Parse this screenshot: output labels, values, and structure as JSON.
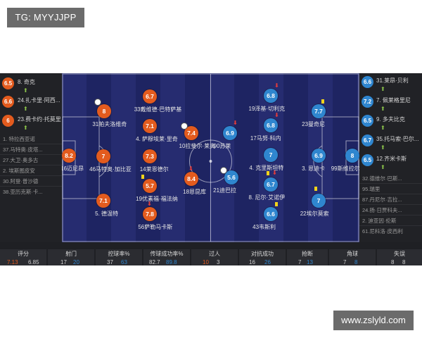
{
  "watermark_top": "TG: MYYJJPP",
  "watermark_bottom": "www.zslyld.com",
  "home_subs": [
    {
      "num_name": "8. 奇克",
      "rating": "6.5"
    },
    {
      "num_name": "24.扎卡里·阿西...",
      "rating": "6.6"
    },
    {
      "num_name": "23.费卡约·托莫里",
      "rating": "6"
    }
  ],
  "home_bench": [
    "1. 特拉西亚诺",
    "37.马特奥·皮塔...",
    "27.大卫·奥多古",
    "2. 埃斯图皮安",
    "30.阿登·普沙德",
    "38.亚历克斯·卡..."
  ],
  "away_subs": [
    {
      "num_name": "31.莱昂·贝利",
      "rating": "6.6"
    },
    {
      "num_name": "7. 佩莱格里尼",
      "rating": "7.2"
    },
    {
      "num_name": "9. 多夫比克",
      "rating": "6.5"
    },
    {
      "num_name": "35.托马索·巴尔...",
      "rating": "6.7"
    },
    {
      "num_name": "12.齐米卡斯",
      "rating": "6.5"
    }
  ],
  "away_bench": [
    "32.德维尔·巴斯...",
    "95.瑞里",
    "87.丹尼尔·吉拉...",
    "24.扬·日贾科夫...",
    "2. 迪亚因·伦斯",
    "61.尼科洛·皮西利"
  ],
  "home_players": [
    {
      "rating": "8.2",
      "name": "16迈尼昂"
    },
    {
      "rating": "8",
      "name": "31帕夫洛维奇"
    },
    {
      "rating": "7",
      "name": "46马特奥·加比亚"
    },
    {
      "rating": "7.1",
      "name": "5. 德温特"
    },
    {
      "rating": "6.7",
      "name": "33戴维德·巴特萨基"
    },
    {
      "rating": "7.1",
      "name": "4. 萨穆埃莱·里奇"
    },
    {
      "rating": "7.3",
      "name": "14莱恩德尔"
    },
    {
      "rating": "5.7",
      "name": "19优素福·福法纳"
    },
    {
      "rating": "7.8",
      "name": "56萨勒马卡斯"
    },
    {
      "rating": "7.4",
      "name": "10拉斐尔·莱奥"
    },
    {
      "rating": "8.4",
      "name": "18恩昆库"
    }
  ],
  "away_players": [
    {
      "rating": "8",
      "name": "99斯维拉尔"
    },
    {
      "rating": "6.9",
      "name": "3. 恩迪卡"
    },
    {
      "rating": "7.7",
      "name": "23曼奇尼"
    },
    {
      "rating": "7",
      "name": "22埃尔莫索"
    },
    {
      "rating": "6.8",
      "name": "19泽基·切利克"
    },
    {
      "rating": "6.8",
      "name": "17马努·科内"
    },
    {
      "rating": "7",
      "name": "4. 克里斯坦特"
    },
    {
      "rating": "6.7",
      "name": "8. 尼尔·艾诺伊"
    },
    {
      "rating": "6.6",
      "name": "43韦斯利"
    },
    {
      "rating": "6.9",
      "name": "90苏莱"
    },
    {
      "rating": "5.6",
      "name": "21迪巴拉"
    }
  ],
  "stats": [
    {
      "label": "评分",
      "home": "7.13",
      "away": "6.85"
    },
    {
      "label": "射门",
      "home": "17",
      "away": "20"
    },
    {
      "label": "控球率%",
      "home": "37",
      "away": "63"
    },
    {
      "label": "传球成功率%",
      "home": "82.7",
      "away": "89.8"
    },
    {
      "label": "过人",
      "home": "10",
      "away": "3"
    },
    {
      "label": "对抗成功",
      "home": "16",
      "away": "26"
    },
    {
      "label": "抢断",
      "home": "7",
      "away": "13"
    },
    {
      "label": "角球",
      "home": "7",
      "away": "8"
    },
    {
      "label": "失误",
      "home": "8",
      "away": "8"
    }
  ],
  "colors": {
    "home": "#e35b1e",
    "away": "#2f86cf",
    "card": "#f2d31b",
    "sub_in": "#8bc34a"
  }
}
